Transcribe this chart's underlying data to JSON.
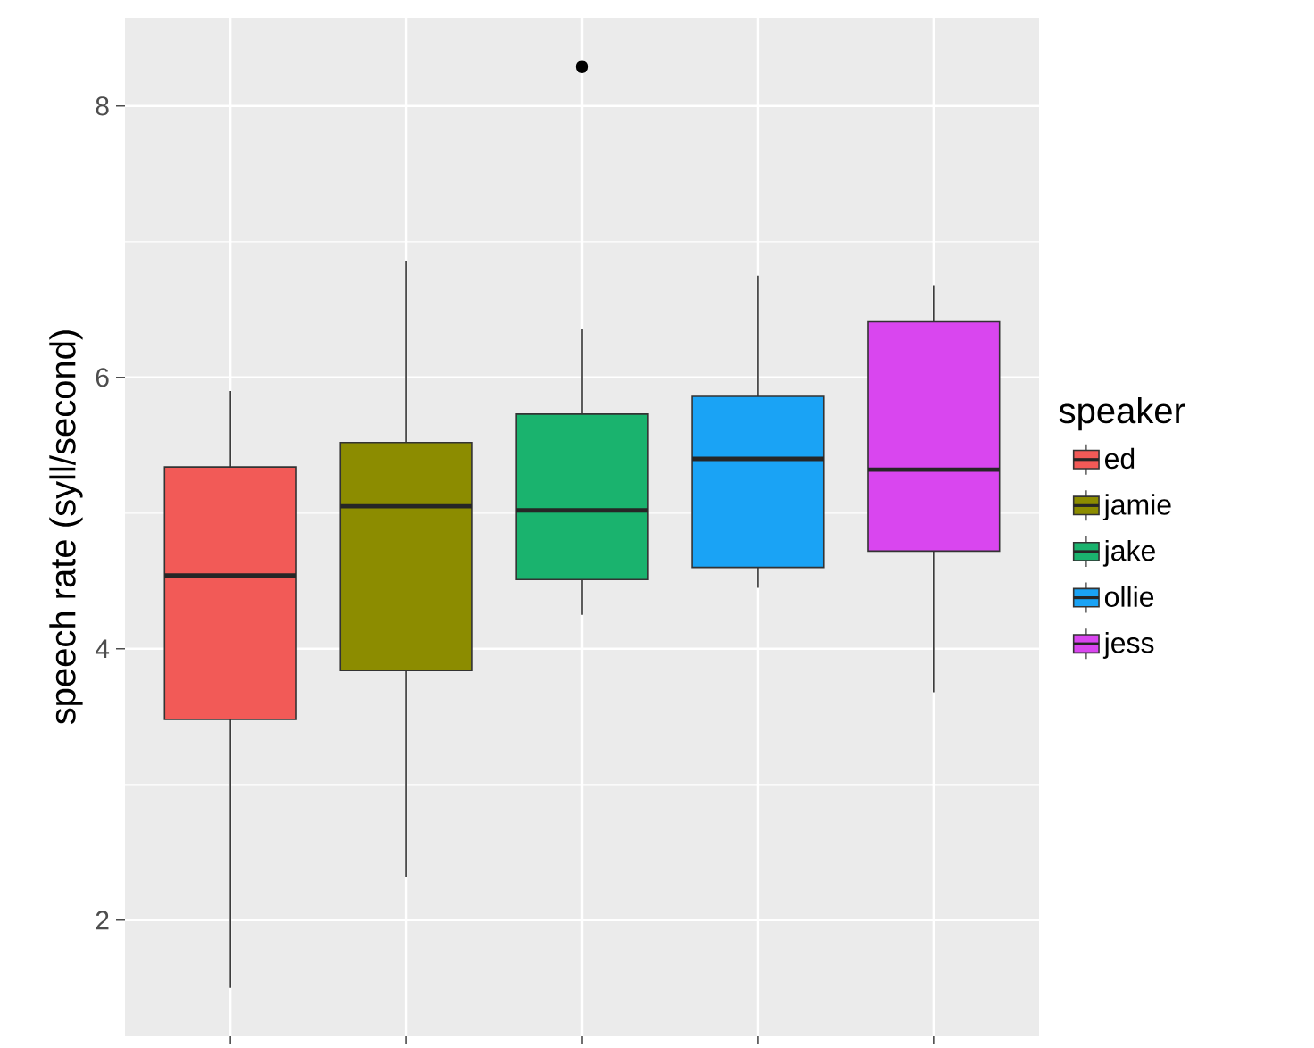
{
  "chart_data": {
    "type": "box",
    "ylabel": "speech rate (syll/second)",
    "legend_title": "speaker",
    "categories": [
      null,
      null,
      null,
      null,
      null
    ],
    "series": [
      {
        "name": "ed",
        "color": "#f25a57",
        "boxes": [
          {
            "low": 1.5,
            "q1": 3.48,
            "median": 4.54,
            "q3": 5.34,
            "high": 5.9
          },
          null,
          null,
          null,
          null
        ]
      },
      {
        "name": "jamie",
        "color": "#8c8c00",
        "boxes": [
          null,
          {
            "low": 2.32,
            "q1": 3.84,
            "median": 5.05,
            "q3": 5.52,
            "high": 6.86
          },
          null,
          null,
          null
        ]
      },
      {
        "name": "jake",
        "color": "#1ab36e",
        "boxes": [
          null,
          null,
          {
            "low": 4.25,
            "q1": 4.51,
            "median": 5.02,
            "q3": 5.73,
            "high": 6.36,
            "outliers": [
              8.29
            ]
          },
          null,
          null
        ]
      },
      {
        "name": "ollie",
        "color": "#1aa3f5",
        "boxes": [
          null,
          null,
          null,
          {
            "low": 4.45,
            "q1": 4.6,
            "median": 5.4,
            "q3": 5.86,
            "high": 6.75
          },
          null
        ]
      },
      {
        "name": "jess",
        "color": "#d946ef",
        "boxes": [
          null,
          null,
          null,
          null,
          {
            "low": 3.68,
            "q1": 4.72,
            "median": 5.32,
            "q3": 6.41,
            "high": 6.68
          }
        ]
      }
    ],
    "ylim": [
      1.15,
      8.65
    ],
    "yticks": [
      2,
      4,
      6,
      8
    ],
    "grid": true,
    "legend": "right",
    "tick_labels": "y"
  }
}
